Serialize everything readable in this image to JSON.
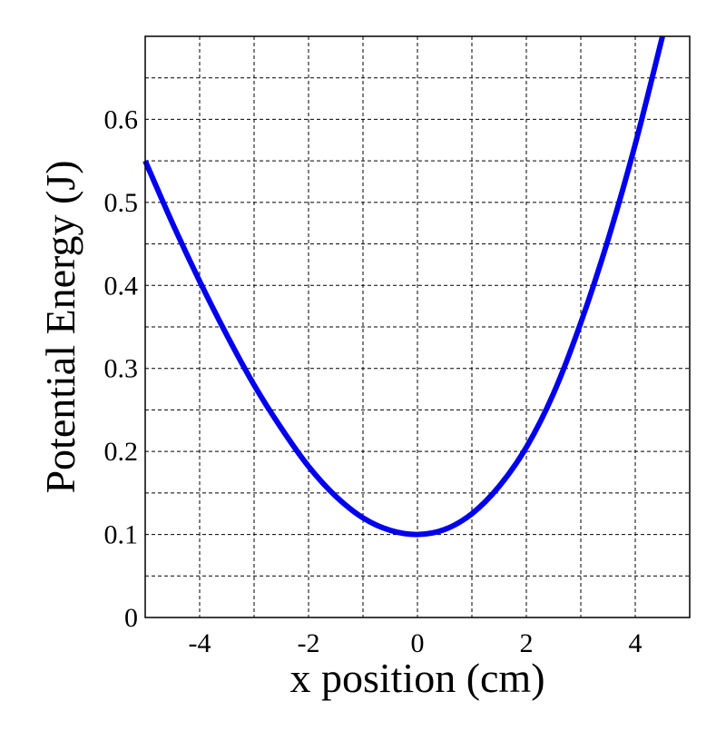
{
  "chart_data": {
    "type": "line",
    "title": "",
    "xlabel": "x position (cm)",
    "ylabel": "Potential Energy (J)",
    "xlim": [
      -5,
      5
    ],
    "ylim": [
      0,
      0.7
    ],
    "x_ticks": [
      -4,
      -2,
      0,
      2,
      4
    ],
    "x_tick_labels": [
      "-4",
      "-2",
      "0",
      "2",
      "4"
    ],
    "y_ticks": [
      0,
      0.1,
      0.2,
      0.3,
      0.4,
      0.5,
      0.6
    ],
    "y_tick_labels": [
      "0",
      "0.1",
      "0.2",
      "0.3",
      "0.4",
      "0.5",
      "0.6"
    ],
    "x_grid_lines": [
      -4,
      -3,
      -2,
      -1,
      0,
      1,
      2,
      3,
      4
    ],
    "y_grid_lines": [
      0.05,
      0.1,
      0.15,
      0.2,
      0.25,
      0.3,
      0.35,
      0.4,
      0.45,
      0.5,
      0.55,
      0.6,
      0.65
    ],
    "grid": true,
    "grid_style": "dashed",
    "legend": "none",
    "series": [
      {
        "color": "#0000ee",
        "x": [
          -5,
          -4.5,
          -4,
          -3.5,
          -3,
          -2.5,
          -2,
          -1.5,
          -1,
          -0.5,
          0,
          0.5,
          1,
          1.5,
          2,
          2.5,
          3,
          3.5,
          4,
          4.5
        ],
        "y": [
          0.55,
          0.475,
          0.405,
          0.34,
          0.28,
          0.228,
          0.182,
          0.146,
          0.12,
          0.105,
          0.1,
          0.106,
          0.125,
          0.158,
          0.205,
          0.27,
          0.355,
          0.455,
          0.57,
          0.7
        ]
      }
    ]
  }
}
